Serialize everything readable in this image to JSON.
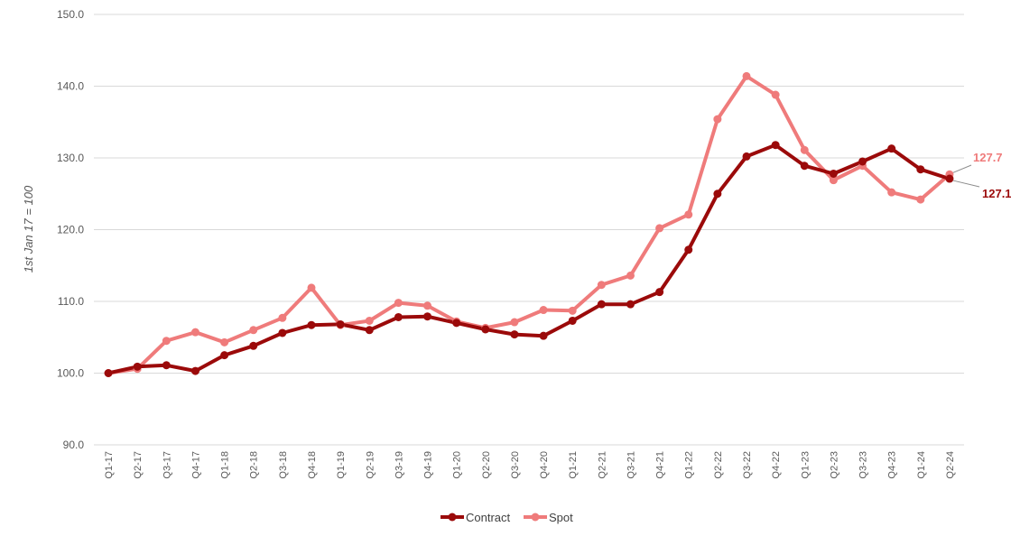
{
  "chart_data": {
    "type": "line",
    "title": "",
    "ylabel": "1st Jan 17 = 100",
    "xlabel": "",
    "ylim": [
      90,
      150
    ],
    "yticks": [
      "90.0",
      "100.0",
      "110.0",
      "120.0",
      "130.0",
      "140.0",
      "150.0"
    ],
    "categories": [
      "Q1-17",
      "Q2-17",
      "Q3-17",
      "Q4-17",
      "Q1-18",
      "Q2-18",
      "Q3-18",
      "Q4-18",
      "Q1-19",
      "Q2-19",
      "Q3-19",
      "Q4-19",
      "Q1-20",
      "Q2-20",
      "Q3-20",
      "Q4-20",
      "Q1-21",
      "Q2-21",
      "Q3-21",
      "Q4-21",
      "Q1-22",
      "Q2-22",
      "Q3-22",
      "Q4-22",
      "Q1-23",
      "Q2-23",
      "Q3-23",
      "Q4-23",
      "Q1-24",
      "Q2-24"
    ],
    "series": [
      {
        "name": "Contract",
        "color": "#9b0a0a",
        "values": [
          100.0,
          100.9,
          101.1,
          100.3,
          102.5,
          103.8,
          105.6,
          106.7,
          106.8,
          106.0,
          107.8,
          107.9,
          107.0,
          106.1,
          105.4,
          105.2,
          107.3,
          109.6,
          109.6,
          111.3,
          117.2,
          125.0,
          130.2,
          131.8,
          128.9,
          127.8,
          129.5,
          131.3,
          128.4,
          127.1
        ],
        "end_label": "127.1"
      },
      {
        "name": "Spot",
        "color": "#ef7b7b",
        "values": [
          100.0,
          100.6,
          104.5,
          105.7,
          104.3,
          106.0,
          107.7,
          111.9,
          106.7,
          107.3,
          109.8,
          109.4,
          107.2,
          106.3,
          107.1,
          108.8,
          108.7,
          112.3,
          113.6,
          120.2,
          122.1,
          135.4,
          141.4,
          138.8,
          131.1,
          126.9,
          128.9,
          125.2,
          124.2,
          127.7
        ],
        "end_label": "127.7"
      }
    ],
    "grid": true,
    "legend": "bottom-center"
  }
}
